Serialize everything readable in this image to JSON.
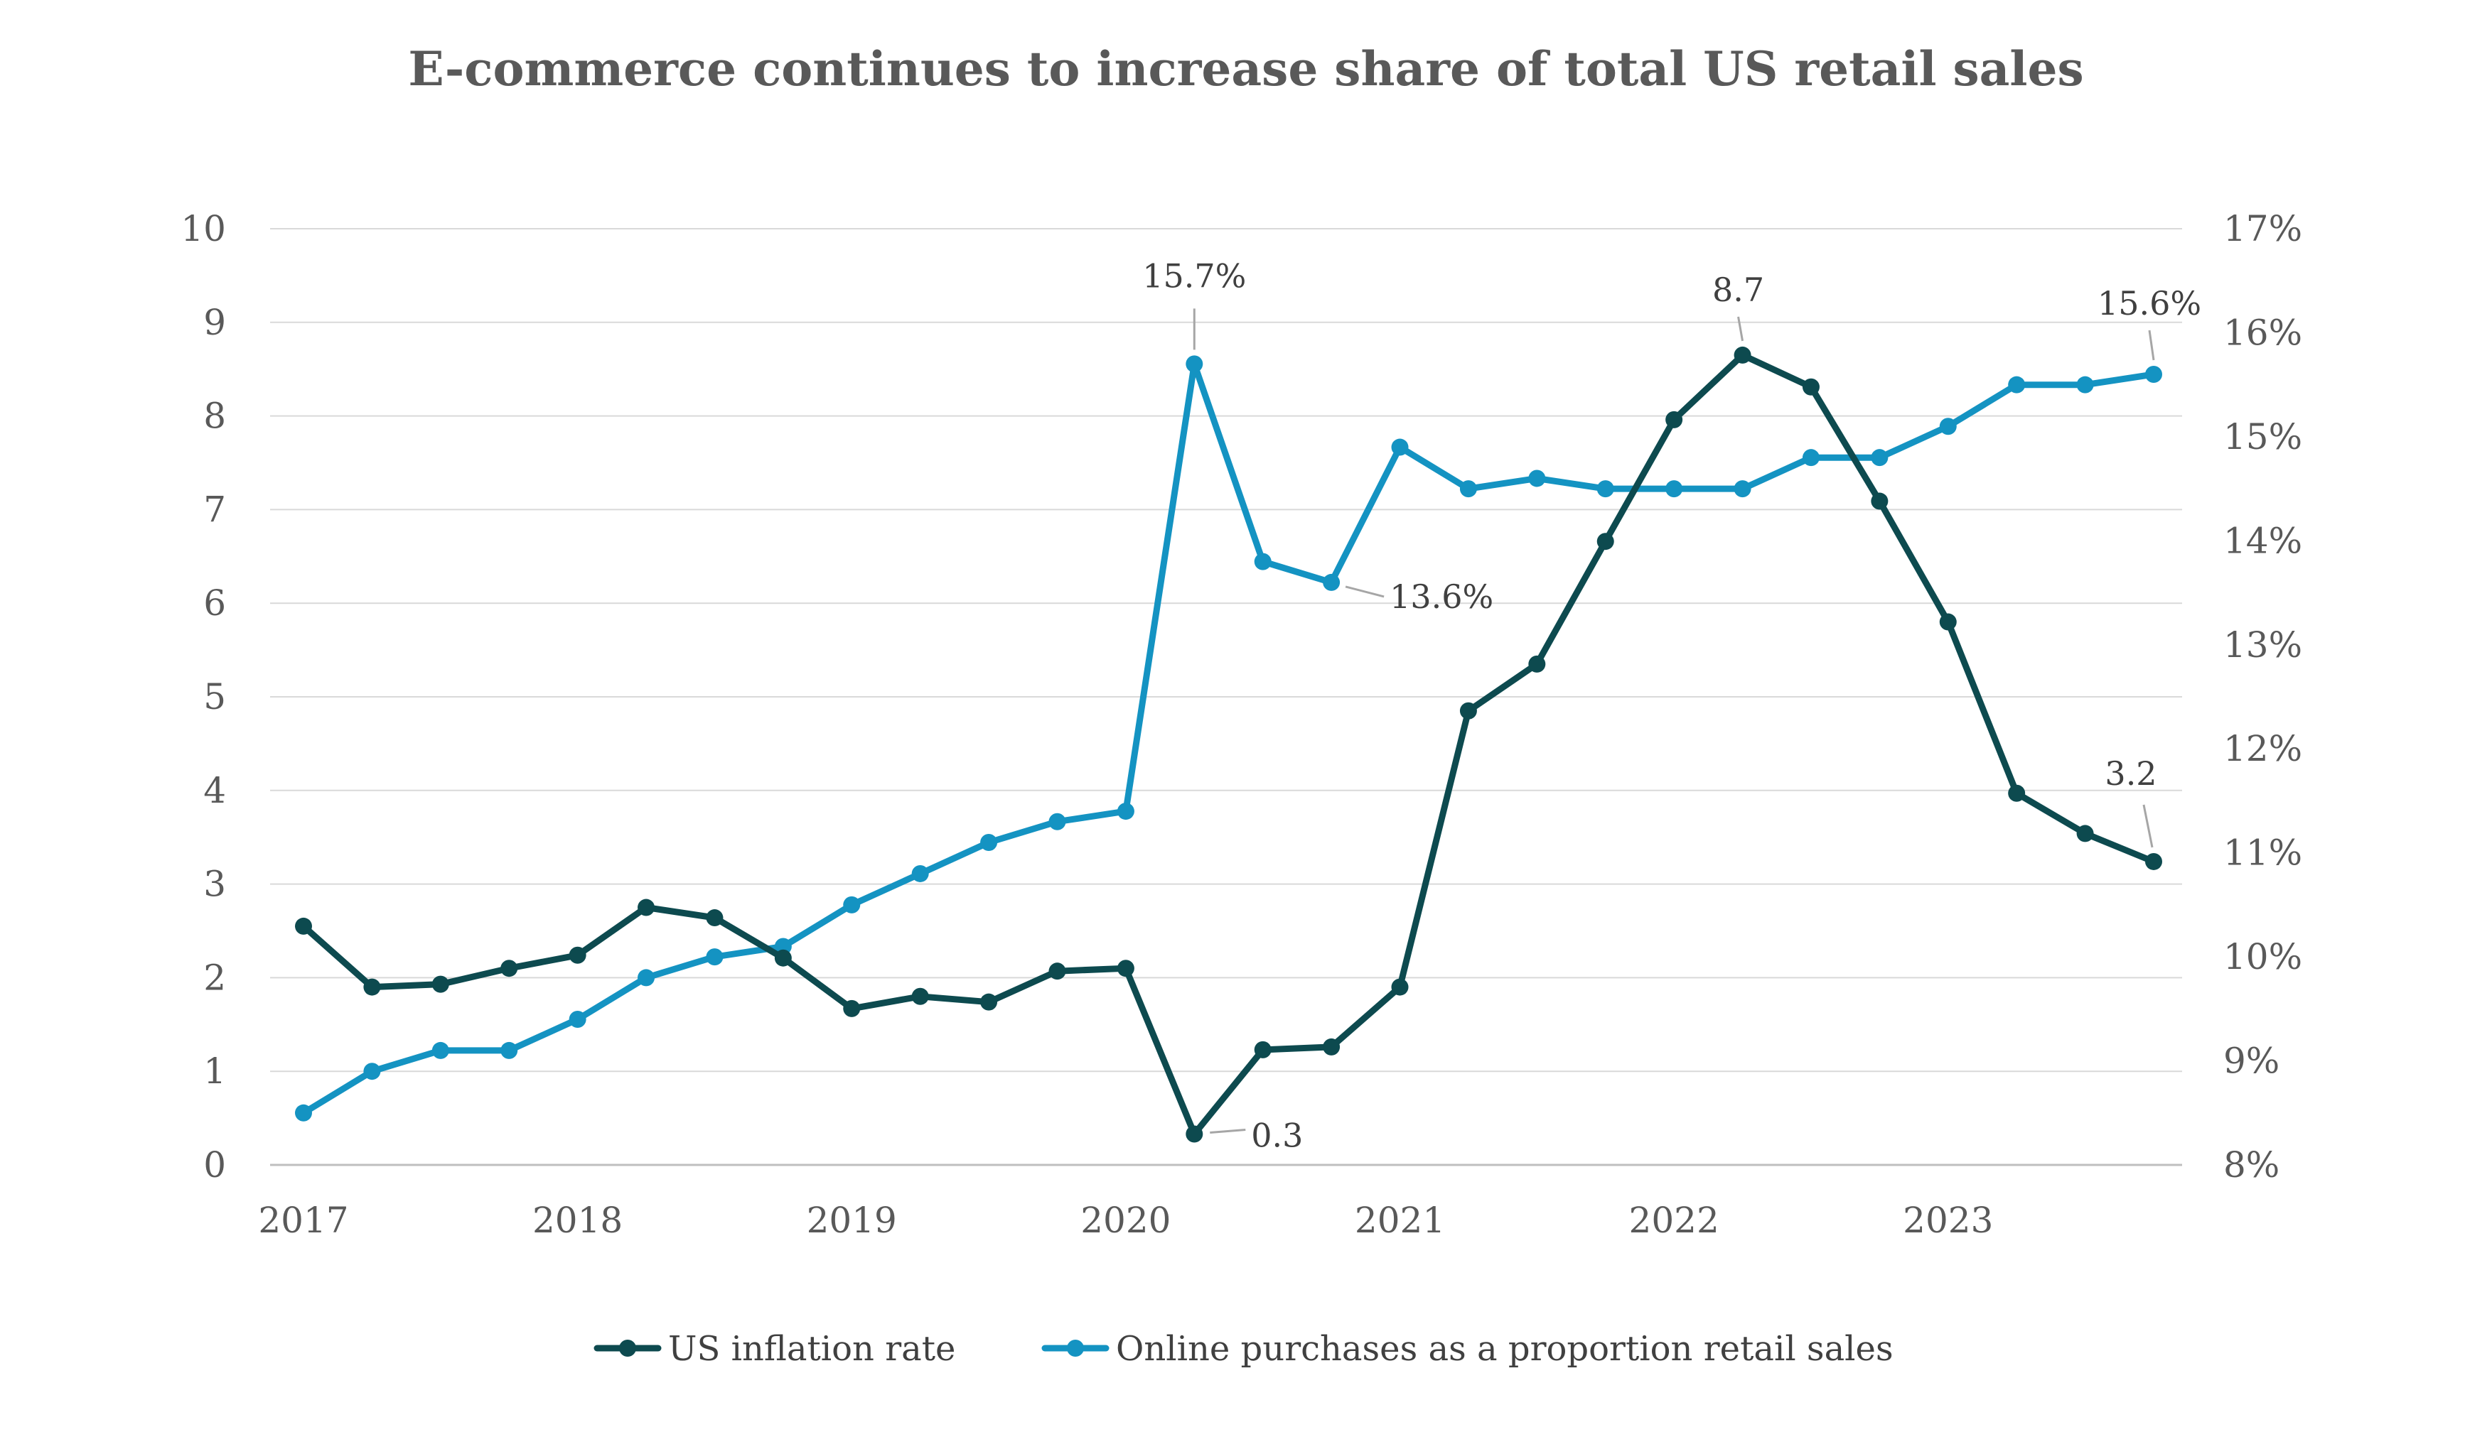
{
  "chart_data": {
    "type": "line",
    "title": "E-commerce continues to increase share of total US retail sales",
    "x_tick_labels": [
      "2017",
      "2018",
      "2019",
      "2020",
      "2021",
      "2022",
      "2023"
    ],
    "x_quarters": [
      "2017 Q1",
      "2017 Q2",
      "2017 Q3",
      "2017 Q4",
      "2018 Q1",
      "2018 Q2",
      "2018 Q3",
      "2018 Q4",
      "2019 Q1",
      "2019 Q2",
      "2019 Q3",
      "2019 Q4",
      "2020 Q1",
      "2020 Q2",
      "2020 Q3",
      "2020 Q4",
      "2021 Q1",
      "2021 Q2",
      "2021 Q3",
      "2021 Q4",
      "2022 Q1",
      "2022 Q2",
      "2022 Q3",
      "2022 Q4",
      "2023 Q1",
      "2023 Q2",
      "2023 Q3",
      "2023 Q4"
    ],
    "y_left": {
      "ylim": [
        0,
        10
      ],
      "tick_labels": [
        "0",
        "1",
        "2",
        "3",
        "4",
        "5",
        "6",
        "7",
        "8",
        "9",
        "10"
      ]
    },
    "y_right": {
      "ylim": [
        8,
        17
      ],
      "unit": "%",
      "tick_labels": [
        "8%",
        "9%",
        "10%",
        "11%",
        "12%",
        "13%",
        "14%",
        "15%",
        "16%",
        "17%"
      ]
    },
    "grid": true,
    "legend_position": "bottom",
    "series": [
      {
        "name": "US inflation rate",
        "axis": "left",
        "color": "#0d4a4f",
        "values": [
          2.55,
          1.9,
          1.93,
          2.1,
          2.24,
          2.75,
          2.64,
          2.21,
          1.67,
          1.8,
          1.74,
          2.07,
          2.1,
          0.33,
          1.23,
          1.26,
          1.9,
          4.85,
          5.35,
          6.66,
          7.96,
          8.65,
          8.31,
          7.09,
          5.8,
          3.97,
          3.54,
          3.24
        ]
      },
      {
        "name": "Online purchases as a proportion retail sales",
        "axis": "right",
        "color": "#1493c2",
        "values": [
          8.5,
          8.9,
          9.1,
          9.1,
          9.4,
          9.8,
          10.0,
          10.1,
          10.5,
          10.8,
          11.1,
          11.3,
          11.4,
          15.7,
          13.8,
          13.6,
          14.9,
          14.5,
          14.6,
          14.5,
          14.5,
          14.5,
          14.8,
          14.8,
          15.1,
          15.5,
          15.5,
          15.6
        ]
      }
    ],
    "annotations": [
      {
        "series": 1,
        "index": 13,
        "text": "15.7%"
      },
      {
        "series": 1,
        "index": 15,
        "text": "13.6%"
      },
      {
        "series": 1,
        "index": 27,
        "text": "15.6%"
      },
      {
        "series": 0,
        "index": 13,
        "text": "0.3"
      },
      {
        "series": 0,
        "index": 21,
        "text": "8.7"
      },
      {
        "series": 0,
        "index": 27,
        "text": "3.2"
      }
    ]
  }
}
